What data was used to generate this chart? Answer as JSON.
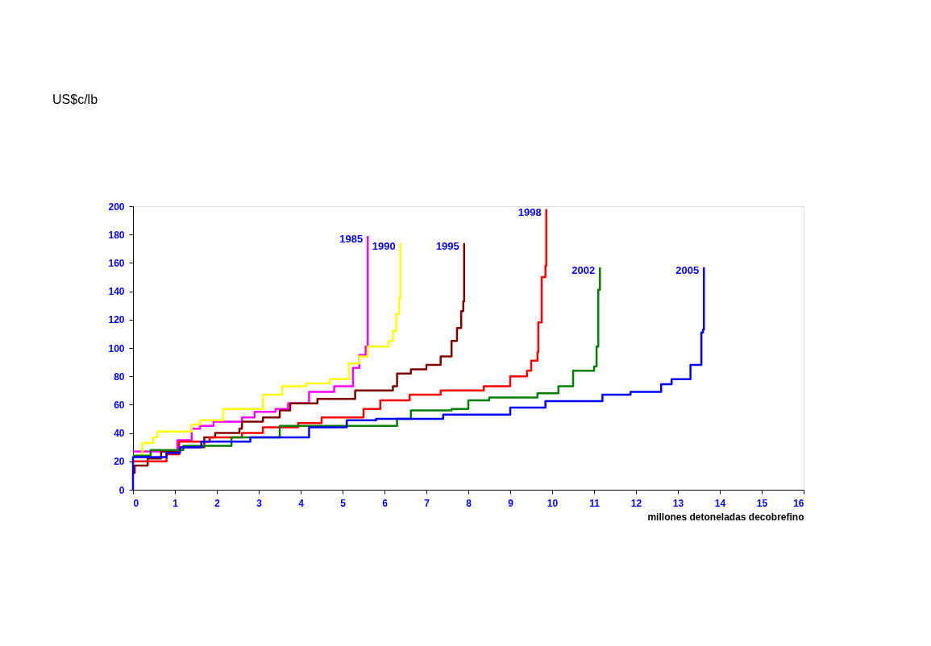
{
  "chart_data": {
    "type": "step",
    "annotations": [
      "US$c/lb"
    ],
    "xlabel": "millones detoneladas decobrefino",
    "xlim": [
      0,
      16
    ],
    "xticks": [
      0,
      1,
      2,
      3,
      4,
      5,
      6,
      7,
      8,
      9,
      10,
      11,
      12,
      13,
      14,
      15,
      16
    ],
    "ylim": [
      0,
      200
    ],
    "yticks": [
      0,
      20,
      40,
      60,
      80,
      100,
      120,
      140,
      160,
      180,
      200
    ],
    "grid": false,
    "marker": "none",
    "line_style": "solid",
    "series": [
      {
        "name": "1985",
        "color": "#ff00ff",
        "x": [
          0,
          1.06,
          1.4,
          1.6,
          1.92,
          2.6,
          2.9,
          3.4,
          3.7,
          4.2,
          4.8,
          5.25,
          5.4,
          5.55,
          5.6
        ],
        "values": [
          27,
          35,
          43,
          45,
          48,
          51,
          55,
          57,
          61,
          69,
          73,
          86,
          95,
          101,
          179
        ]
      },
      {
        "name": "1990",
        "color": "#ffff00",
        "x": [
          0,
          0.22,
          0.48,
          0.58,
          1.4,
          1.6,
          2.15,
          3.1,
          3.56,
          4.13,
          4.7,
          5.15,
          5.4,
          5.6,
          6.1,
          6.2,
          6.28,
          6.35,
          6.38
        ],
        "values": [
          24,
          33,
          37,
          41,
          46,
          49,
          57,
          67,
          73,
          75,
          78,
          89,
          94,
          101,
          105,
          112,
          124,
          135,
          174
        ]
      },
      {
        "name": "1995",
        "color": "#800000",
        "x": [
          0,
          0.04,
          0.35,
          0.67,
          1.12,
          1.7,
          1.96,
          2.54,
          2.6,
          3.1,
          3.5,
          3.75,
          4.4,
          5.3,
          6.2,
          6.3,
          6.63,
          7.0,
          7.34,
          7.6,
          7.73,
          7.83,
          7.88,
          7.9
        ],
        "values": [
          12,
          17,
          22,
          27,
          30,
          37,
          40,
          43,
          48,
          51,
          56,
          61,
          64,
          70,
          73,
          82,
          85,
          88,
          94,
          105,
          114,
          126,
          133,
          174
        ]
      },
      {
        "name": "1998",
        "color": "#ff0000",
        "x": [
          0,
          0.8,
          1.1,
          1.83,
          2.6,
          3.1,
          3.94,
          4.5,
          5.5,
          5.9,
          6.6,
          7.34,
          8.37,
          9.0,
          9.4,
          9.5,
          9.65,
          9.67,
          9.75,
          9.84,
          9.86
        ],
        "values": [
          20,
          25,
          34,
          37,
          40,
          44,
          47,
          51,
          57,
          63,
          67,
          70,
          73,
          80,
          84,
          91,
          97,
          118,
          150,
          158,
          198
        ]
      },
      {
        "name": "2002",
        "color": "#008000",
        "x": [
          0,
          0.42,
          1.2,
          2.35,
          3.5,
          6.3,
          6.63,
          7.6,
          8.0,
          8.5,
          9.65,
          10.15,
          10.5,
          11.0,
          11.06,
          11.1,
          11.14
        ],
        "values": [
          24,
          28,
          31,
          37,
          45,
          50,
          56,
          57,
          63,
          65,
          68,
          73,
          84,
          87,
          101,
          141,
          157
        ]
      },
      {
        "name": "2005",
        "color": "#0000ff",
        "x": [
          0,
          0,
          0.8,
          1.12,
          1.63,
          2.8,
          4.2,
          5.1,
          5.8,
          7.4,
          9.0,
          9.84,
          11.2,
          11.87,
          12.6,
          12.85,
          13.3,
          13.56,
          13.6,
          13.62
        ],
        "values": [
          0,
          23,
          26,
          30,
          34,
          37,
          44,
          49,
          50,
          53,
          58,
          62.5,
          67,
          69,
          74.5,
          78,
          88,
          111,
          113,
          157
        ]
      }
    ]
  }
}
